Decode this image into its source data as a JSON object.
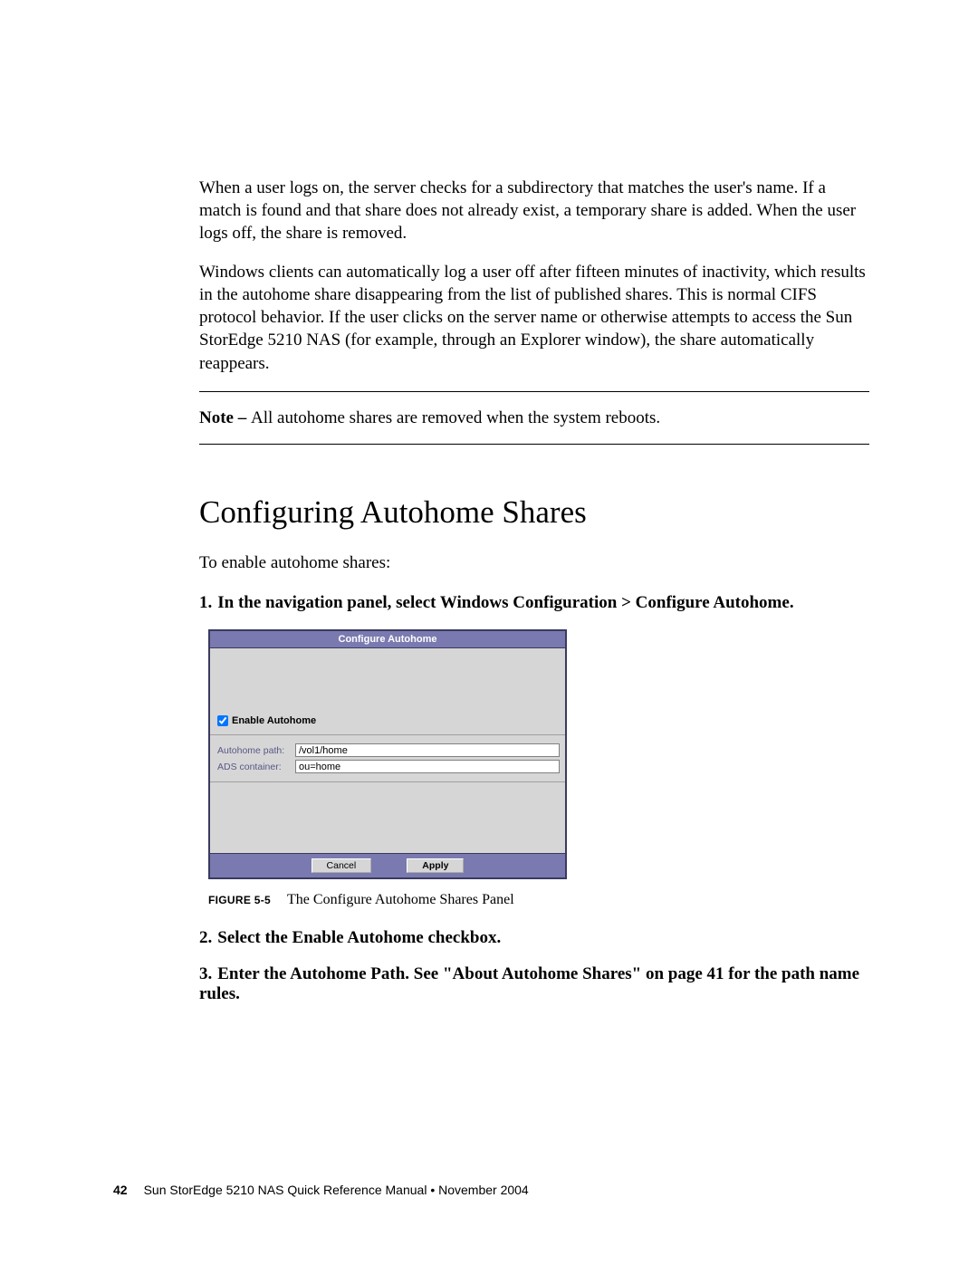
{
  "paragraphs": {
    "p1": "When a user logs on, the server checks for a subdirectory that matches the user's name. If a match is found and that share does not already exist, a temporary share is added. When the user logs off, the share is removed.",
    "p2": "Windows clients can automatically log a user off after fifteen minutes of inactivity, which results in the autohome share disappearing from the list of published shares. This is normal CIFS protocol behavior. If the user clicks on the server name or otherwise attempts to access the Sun StorEdge 5210 NAS (for example, through an Explorer window), the share automatically reappears."
  },
  "note": {
    "label": "Note – ",
    "text": "All autohome shares are removed when the system reboots."
  },
  "heading": "Configuring Autohome Shares",
  "intro": "To enable autohome shares:",
  "steps": {
    "s1_num": "1.",
    "s1": "In the navigation panel, select Windows Configuration > Configure Autohome.",
    "s2_num": "2.",
    "s2": "Select the Enable Autohome checkbox.",
    "s3_num": "3.",
    "s3": "Enter the Autohome Path. See \"About Autohome Shares\" on page 41 for the path name rules."
  },
  "figure": {
    "label": "FIGURE 5-5",
    "caption": "The Configure Autohome Shares Panel",
    "panel": {
      "title": "Configure Autohome",
      "checkbox_label": "Enable Autohome",
      "checkbox_checked": true,
      "autohome_path_label": "Autohome path:",
      "autohome_path_value": "/vol1/home",
      "ads_container_label": "ADS container:",
      "ads_container_value": "ou=home",
      "cancel": "Cancel",
      "apply": "Apply",
      "title_bg": "#7a7ab0",
      "body_bg": "#d6d6d6",
      "label_color": "#585888"
    }
  },
  "footer": {
    "pageno": "42",
    "text": "Sun StorEdge 5210 NAS Quick Reference Manual  •  November 2004"
  }
}
